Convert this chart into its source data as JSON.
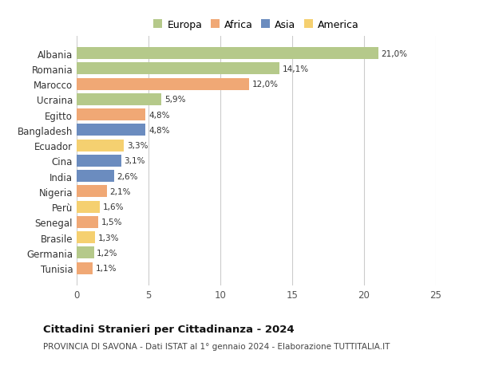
{
  "countries": [
    "Tunisia",
    "Germania",
    "Brasile",
    "Senegal",
    "Perù",
    "Nigeria",
    "India",
    "Cina",
    "Ecuador",
    "Bangladesh",
    "Egitto",
    "Ucraina",
    "Marocco",
    "Romania",
    "Albania"
  ],
  "values": [
    1.1,
    1.2,
    1.3,
    1.5,
    1.6,
    2.1,
    2.6,
    3.1,
    3.3,
    4.8,
    4.8,
    5.9,
    12.0,
    14.1,
    21.0
  ],
  "labels": [
    "1,1%",
    "1,2%",
    "1,3%",
    "1,5%",
    "1,6%",
    "2,1%",
    "2,6%",
    "3,1%",
    "3,3%",
    "4,8%",
    "4,8%",
    "5,9%",
    "12,0%",
    "14,1%",
    "21,0%"
  ],
  "colors": [
    "#f0a875",
    "#b5c98a",
    "#f5d070",
    "#f0a875",
    "#f5d070",
    "#f0a875",
    "#6b8cbf",
    "#6b8cbf",
    "#f5d070",
    "#6b8cbf",
    "#f0a875",
    "#b5c98a",
    "#f0a875",
    "#b5c98a",
    "#b5c98a"
  ],
  "legend_labels": [
    "Europa",
    "Africa",
    "Asia",
    "America"
  ],
  "legend_colors": [
    "#b5c98a",
    "#f0a875",
    "#6b8cbf",
    "#f5d070"
  ],
  "xlim": [
    0,
    25
  ],
  "xticks": [
    0,
    5,
    10,
    15,
    20,
    25
  ],
  "title": "Cittadini Stranieri per Cittadinanza - 2024",
  "subtitle": "PROVINCIA DI SAVONA - Dati ISTAT al 1° gennaio 2024 - Elaborazione TUTTITALIA.IT",
  "bg_color": "#ffffff",
  "grid_color": "#cccccc",
  "bar_height": 0.78
}
